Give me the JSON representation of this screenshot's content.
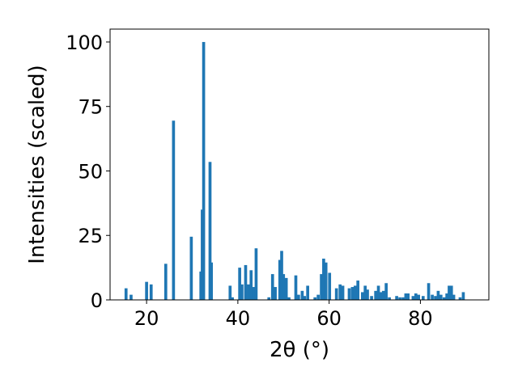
{
  "chart_data": {
    "type": "bar",
    "xlabel": "2θ (°)",
    "ylabel": "Intensities (scaled)",
    "xlim": [
      12,
      95
    ],
    "ylim": [
      0,
      105
    ],
    "xticks": [
      20,
      40,
      60,
      80
    ],
    "yticks": [
      0,
      25,
      50,
      75,
      100
    ],
    "bar_color": "#1f77b4",
    "bar_width": 0.65,
    "grid": false,
    "legend": false,
    "x": [
      15.5,
      16.6,
      20.0,
      21.0,
      24.2,
      25.9,
      29.8,
      31.9,
      32.2,
      32.5,
      33.9,
      34.2,
      38.3,
      38.8,
      40.4,
      40.9,
      41.7,
      42.3,
      42.9,
      43.5,
      44.0,
      46.8,
      47.6,
      48.2,
      49.2,
      49.6,
      50.0,
      50.6,
      51.2,
      52.7,
      53.3,
      54.1,
      54.6,
      55.3,
      56.9,
      57.6,
      58.3,
      58.8,
      59.3,
      60.1,
      61.6,
      62.4,
      63.0,
      64.4,
      65.1,
      65.7,
      66.3,
      67.3,
      67.9,
      68.4,
      69.3,
      70.2,
      70.8,
      71.3,
      71.9,
      72.5,
      73.2,
      74.8,
      75.5,
      76.2,
      76.8,
      77.3,
      78.4,
      79.0,
      79.6,
      80.6,
      81.8,
      82.6,
      83.3,
      83.9,
      84.5,
      85.2,
      85.8,
      86.3,
      86.8,
      87.3,
      88.7,
      89.4
    ],
    "values": [
      4.5,
      2,
      7,
      6,
      14,
      69.5,
      24.5,
      11,
      35,
      100,
      53.5,
      14.5,
      5.5,
      1,
      12.5,
      6,
      13.5,
      6,
      11.5,
      5,
      20,
      1,
      10,
      5,
      15.5,
      19,
      10,
      8.5,
      1,
      9.5,
      2,
      3.5,
      1.5,
      5.5,
      1,
      2,
      10,
      16,
      14.5,
      10.5,
      4.5,
      6,
      5.5,
      4.5,
      5,
      5.5,
      7.5,
      3,
      5.5,
      4,
      1.5,
      3.5,
      5.5,
      3,
      3.5,
      6.5,
      1,
      1.5,
      1,
      1,
      2.5,
      2.5,
      1.5,
      2.5,
      2,
      1.5,
      6.5,
      2,
      1.5,
      3.5,
      2,
      1,
      2.5,
      5.5,
      5.5,
      2,
      1,
      3
    ]
  }
}
